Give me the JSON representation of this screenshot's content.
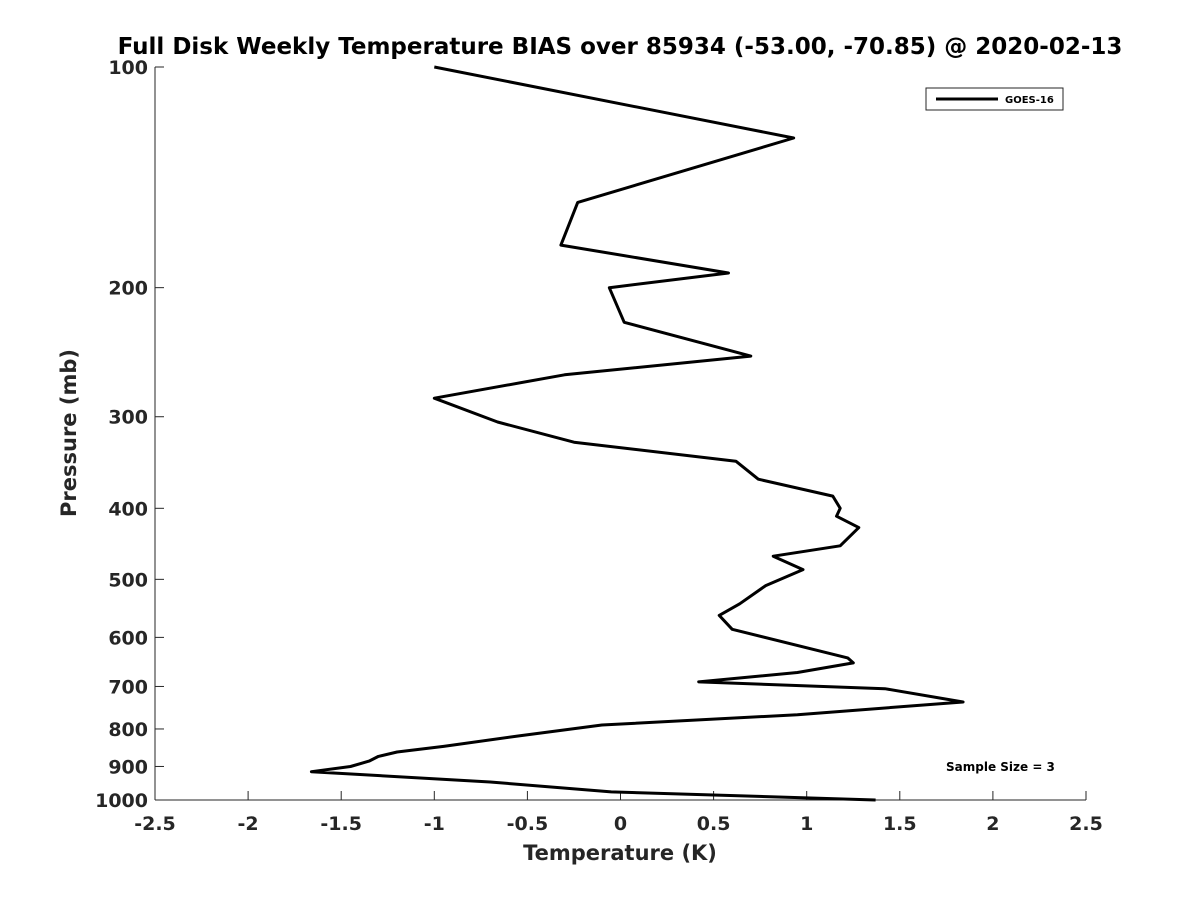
{
  "chart_data": {
    "type": "line",
    "title": "Full Disk Weekly Temperature BIAS over 85934 (-53.00, -70.85) @ 2020-02-13",
    "xlabel": "Temperature (K)",
    "ylabel": "Pressure (mb)",
    "xlim": [
      -2.5,
      2.5
    ],
    "ylim": [
      100,
      1000
    ],
    "y_scale": "log",
    "y_reversed": true,
    "x_ticks": [
      "-2.5",
      "-2",
      "-1.5",
      "-1",
      "-0.5",
      "0",
      "0.5",
      "1",
      "1.5",
      "2",
      "2.5"
    ],
    "y_ticks": [
      "100",
      "200",
      "300",
      "400",
      "500",
      "600",
      "700",
      "800",
      "900",
      "1000"
    ],
    "grid": false,
    "legend_position": "top-right",
    "annotation": "Sample Size = 3",
    "series": [
      {
        "name": "GOES-16",
        "color": "#000000",
        "x": [
          -1.0,
          0.93,
          -0.23,
          -0.32,
          0.58,
          -0.06,
          0.02,
          0.7,
          -0.3,
          -1.0,
          -0.66,
          -0.25,
          0.62,
          0.74,
          1.14,
          1.18,
          1.16,
          1.28,
          1.18,
          0.82,
          0.98,
          0.78,
          0.64,
          0.53,
          0.6,
          1.22,
          1.25,
          0.95,
          0.42,
          1.42,
          1.84,
          0.95,
          -0.1,
          -0.55,
          -0.95,
          -1.2,
          -1.3,
          -1.35,
          -1.45,
          -1.66,
          -0.7,
          -0.05,
          1.37
        ],
        "y": [
          100,
          125,
          153,
          175,
          191,
          200,
          223,
          248,
          263,
          283,
          305,
          325,
          345,
          365,
          385,
          400,
          410,
          425,
          450,
          465,
          485,
          510,
          540,
          560,
          585,
          640,
          650,
          670,
          690,
          705,
          735,
          765,
          790,
          818,
          845,
          860,
          872,
          885,
          900,
          915,
          945,
          975,
          1000
        ]
      }
    ]
  }
}
